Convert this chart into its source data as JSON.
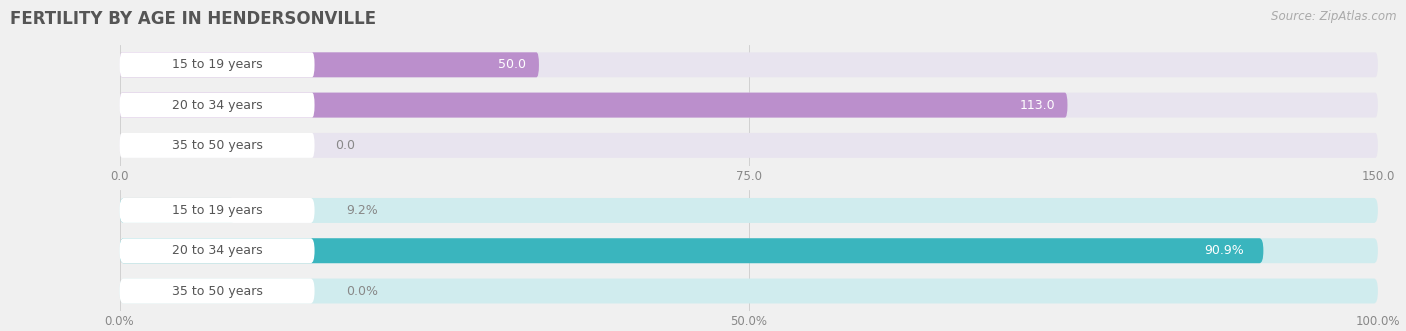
{
  "title": "FERTILITY BY AGE IN HENDERSONVILLE",
  "source": "Source: ZipAtlas.com",
  "chart1": {
    "categories": [
      "15 to 19 years",
      "20 to 34 years",
      "35 to 50 years"
    ],
    "values": [
      50.0,
      113.0,
      0.0
    ],
    "bar_color": "#bb8fcc",
    "bg_color": "#e8e4ef",
    "xlim": [
      0,
      150
    ],
    "xticks": [
      0.0,
      75.0,
      150.0
    ]
  },
  "chart2": {
    "categories": [
      "15 to 19 years",
      "20 to 34 years",
      "35 to 50 years"
    ],
    "values": [
      9.2,
      90.9,
      0.0
    ],
    "bar_color": "#3ab5be",
    "bg_color": "#d0ecee",
    "xlim": [
      0,
      100
    ],
    "xticks": [
      0.0,
      50.0,
      100.0
    ]
  },
  "fig_bg": "#f0f0f0",
  "bar_bg_color": "#e8e4ef",
  "bar_bg_color2": "#d0ecee",
  "title_fontsize": 12,
  "source_fontsize": 8.5,
  "tick_fontsize": 8.5,
  "label_fontsize": 9,
  "value_fontsize": 9
}
